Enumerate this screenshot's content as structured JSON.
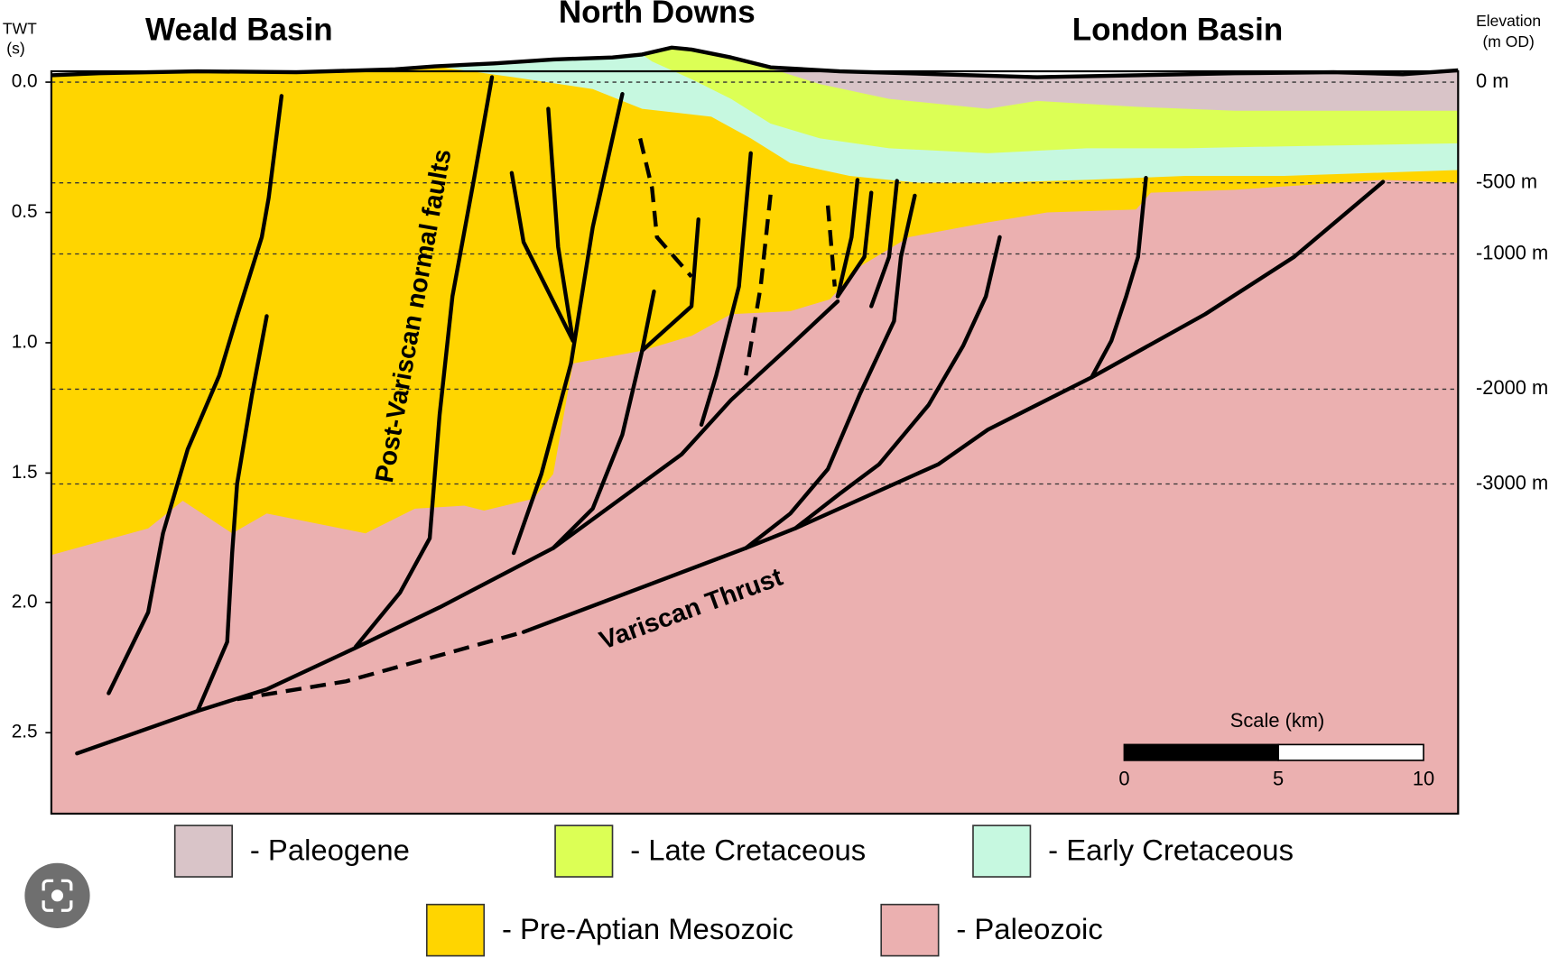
{
  "titles": {
    "left": "Weald Basin",
    "center": "North Downs",
    "right": "London Basin"
  },
  "left_axis": {
    "title_lines": [
      "TWT",
      "(s)"
    ],
    "ticks": [
      "0.0",
      "0.5",
      "1.0",
      "1.5",
      "2.0",
      "2.5"
    ]
  },
  "right_axis": {
    "title_lines": [
      "Elevation",
      "(m OD)"
    ],
    "ticks": [
      "0 m",
      "-500 m",
      "-1000 m",
      "-2000 m",
      "-3000 m"
    ]
  },
  "annotations": {
    "faults": "Post-Variscan normal faults",
    "thrust": "Variscan Thrust"
  },
  "scale": {
    "title": "Scale (km)",
    "ticks": [
      "0",
      "5",
      "10"
    ]
  },
  "legend": [
    {
      "label": "- Paleogene",
      "color": "#d9c4c8"
    },
    {
      "label": "- Late Cretaceous",
      "color": "#dcff55"
    },
    {
      "label": "- Early Cretaceous",
      "color": "#c6f8e0"
    },
    {
      "label": "- Pre-Aptian Mesozoic",
      "color": "#ffd500"
    },
    {
      "label": "- Paleozoic",
      "color": "#ebb0b0"
    }
  ]
}
